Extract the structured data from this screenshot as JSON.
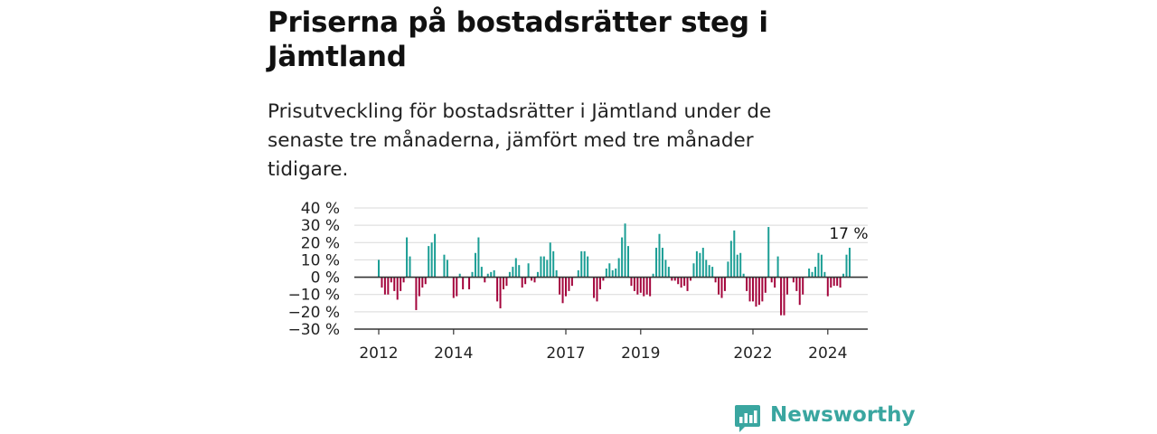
{
  "title": "Priserna på bostadsrätter steg i Jämtland",
  "subtitle": "Prisutveckling för bostadsrätter i Jämtland under de senaste tre månaderna, jämfört med tre månader tidigare.",
  "brand": "Newsworthy",
  "colors": {
    "positive": "#1b9e95",
    "negative": "#a4063d",
    "grid": "#d9d9d9",
    "axis": "#333333"
  },
  "chart_data": {
    "type": "bar",
    "x_unit": "month",
    "x_start": "2012-01",
    "x_tick_labels": [
      "2012",
      "2014",
      "2017",
      "2019",
      "2022",
      "2024"
    ],
    "y_tick_labels": [
      "40 %",
      "30 %",
      "20 %",
      "10 %",
      "0 %",
      "−10 %",
      "−20 %",
      "−30 %"
    ],
    "ylim": [
      -30,
      40
    ],
    "annotation": "17 %",
    "values": [
      10,
      -6,
      -10,
      -10,
      -3,
      -8,
      -13,
      -8,
      -3,
      23,
      12,
      0,
      -19,
      -11,
      -6,
      -4,
      18,
      20,
      25,
      0,
      0,
      13,
      10,
      0,
      -12,
      -11,
      2,
      -7,
      0,
      -7,
      3,
      14,
      23,
      6,
      -3,
      2,
      3,
      4,
      -14,
      -18,
      -7,
      -5,
      3,
      6,
      11,
      7,
      -6,
      -4,
      8,
      -2,
      -3,
      3,
      12,
      12,
      10,
      20,
      15,
      4,
      -10,
      -15,
      -11,
      -8,
      -5,
      0,
      4,
      15,
      15,
      12,
      0,
      -12,
      -14,
      -7,
      -2,
      5,
      8,
      4,
      5,
      11,
      23,
      31,
      18,
      -5,
      -8,
      -10,
      -9,
      -11,
      -10,
      -11,
      2,
      17,
      25,
      17,
      10,
      6,
      -2,
      -2,
      -4,
      -6,
      -5,
      -8,
      -2,
      8,
      15,
      14,
      17,
      10,
      7,
      6,
      -3,
      -10,
      -12,
      -8,
      9,
      21,
      27,
      13,
      14,
      2,
      -8,
      -14,
      -14,
      -17,
      -16,
      -14,
      -9,
      29,
      -3,
      -6,
      12,
      -22,
      -22,
      -10,
      0,
      -3,
      -8,
      -16,
      -10,
      0,
      5,
      3,
      6,
      14,
      13,
      3,
      -11,
      -6,
      -5,
      -5,
      -6,
      2,
      13,
      17
    ]
  }
}
